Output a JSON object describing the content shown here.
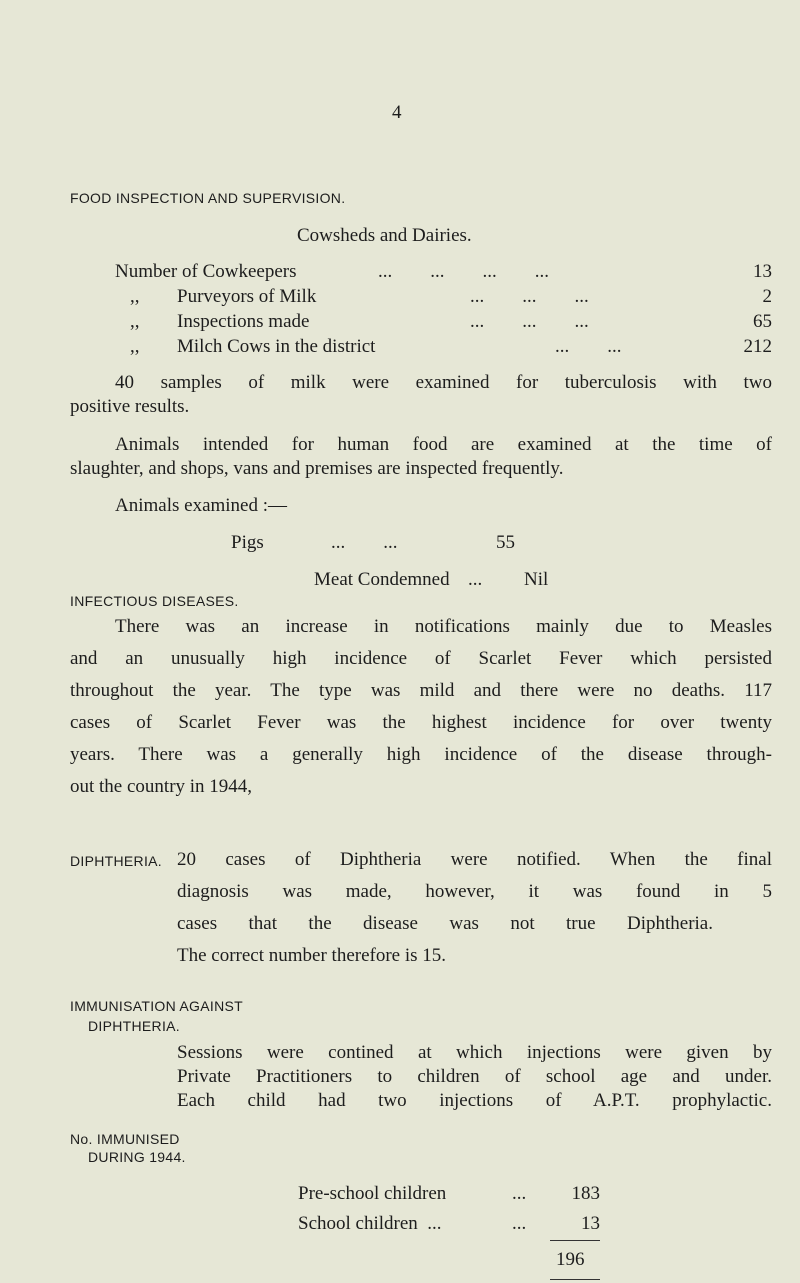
{
  "page_number": "4",
  "food": {
    "heading": "FOOD INSPECTION AND SUPERVISION.",
    "subheading": "Cowsheds and Dairies.",
    "rows": [
      {
        "prefix": "Number of",
        "label": "Cowkeepers",
        "dots": "...        ...        ...        ...",
        "value": "13"
      },
      {
        "prefix": ",,",
        "label": "Purveyors of Milk",
        "dots": "...        ...        ...",
        "value": "2"
      },
      {
        "prefix": ",,",
        "label": "Inspections made",
        "dots": "...        ...        ...",
        "value": "65"
      },
      {
        "prefix": ",,",
        "label": "Milch Cows in the district",
        "dots": "...        ...",
        "value": "212"
      }
    ],
    "para1": [
      "40 samples of milk were examined for tuberculosis with two",
      "positive results."
    ],
    "para2": [
      "Animals intended for human food are examined at the time of",
      "slaughter, and shops, vans and premises are inspected frequently."
    ],
    "animals_label": "Animals examined :—",
    "pigs_label": "Pigs",
    "pigs_dots": "...        ...",
    "pigs_value": "55",
    "meat_label": "Meat Condemned",
    "meat_dots": "...",
    "meat_value": "Nil"
  },
  "infectious": {
    "heading": "INFECTIOUS DISEASES.",
    "lines": [
      "There was an increase in notifications mainly due to Measles",
      "and an unusually high incidence of Scarlet Fever which persisted",
      "throughout the year. The type was mild and there were no deaths. 117",
      "cases of Scarlet Fever was the highest incidence for over twenty",
      "years. There was a generally high incidence of the disease through-",
      "out the country in 1944,"
    ]
  },
  "diphtheria": {
    "heading": "DIPHTHERIA.",
    "lines": [
      "20 cases of Diphtheria were notified. When the final",
      "diagnosis was made, however, it was found in 5",
      "cases that the disease was not true Diphtheria.",
      "The correct number therefore is 15."
    ]
  },
  "immunisation": {
    "heading": [
      "IMMUNISATION AGAINST",
      "DIPHTHERIA."
    ],
    "lines": [
      "Sessions were contined at which injections were given by",
      "Private Practitioners to children of school age and under.",
      "Each child had two injections of A.P.T. prophylactic."
    ],
    "sub_heading": [
      "No. IMMUNISED",
      "DURING 1944."
    ],
    "rows": [
      {
        "label": "Pre-school children",
        "dots": "...",
        "value": "183"
      },
      {
        "label": "School children  ...",
        "dots": "...",
        "value": "13"
      }
    ],
    "total": "196"
  }
}
